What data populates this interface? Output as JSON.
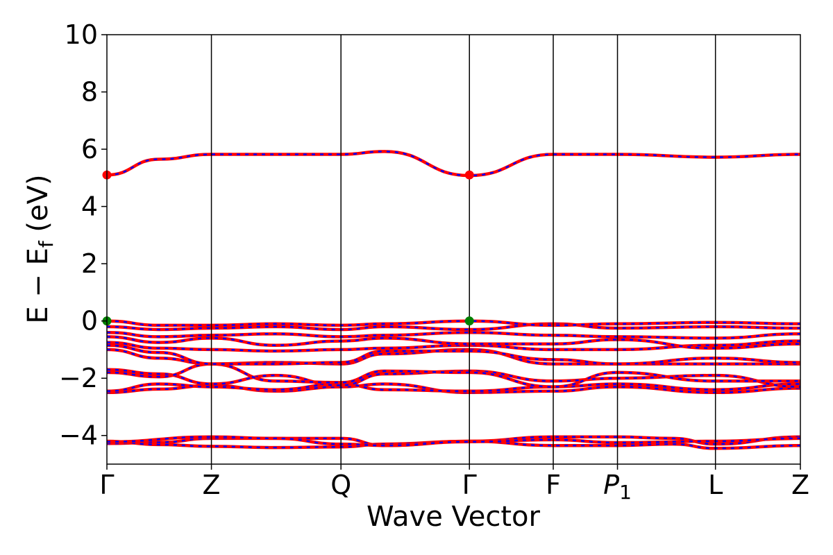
{
  "chart_data": {
    "type": "line",
    "title": "",
    "xlabel": "Wave Vector",
    "ylabel": "E − E",
    "ylabel_subscript": "f",
    "ylabel_unit": " (eV)",
    "ylim": [
      -5,
      10
    ],
    "yticks": [
      -4,
      -2,
      0,
      2,
      4,
      6,
      8,
      10
    ],
    "ytick_labels": [
      "−4",
      "−2",
      "0",
      "2",
      "4",
      "6",
      "8",
      "10"
    ],
    "xlim": [
      0,
      6.37
    ],
    "kpoints": [
      {
        "label": "Γ",
        "x": 0.0
      },
      {
        "label": "Z",
        "x": 0.96
      },
      {
        "label": "Q",
        "x": 2.15
      },
      {
        "label": "Γ",
        "x": 3.33
      },
      {
        "label": "F",
        "x": 4.1
      },
      {
        "label": "P",
        "sub": "1",
        "italic": true,
        "x": 4.69
      },
      {
        "label": "L",
        "x": 5.59
      },
      {
        "label": "Z",
        "x": 6.37
      }
    ],
    "grid": false,
    "band_colors": {
      "line": "#ff0000",
      "dash": "#0000ff"
    },
    "bands": [
      {
        "x": [
          0.0,
          0.48,
          0.96,
          2.15,
          2.55,
          3.33,
          4.1,
          4.69,
          5.2,
          5.59,
          6.37
        ],
        "y": [
          -4.28,
          -4.24,
          -4.1,
          -4.1,
          -4.35,
          -4.2,
          -4.05,
          -4.05,
          -4.1,
          -4.3,
          -4.05
        ]
      },
      {
        "x": [
          0.0,
          0.48,
          0.96,
          1.55,
          2.15,
          2.55,
          3.33,
          4.1,
          4.69,
          5.2,
          5.59,
          6.37
        ],
        "y": [
          -4.2,
          -4.32,
          -4.38,
          -4.42,
          -4.4,
          -4.3,
          -4.2,
          -4.35,
          -4.35,
          -4.3,
          -4.45,
          -4.35
        ]
      },
      {
        "x": [
          0.0,
          0.96,
          1.55,
          2.15,
          2.55,
          3.33,
          4.1,
          4.69,
          5.59,
          6.37
        ],
        "y": [
          -4.22,
          -4.05,
          -4.1,
          -4.3,
          -4.35,
          -4.22,
          -4.15,
          -4.25,
          -4.2,
          -4.1
        ]
      },
      {
        "x": [
          0.0,
          0.48,
          0.96,
          1.55,
          2.15,
          2.55,
          3.33,
          4.1,
          4.69,
          5.59,
          6.37
        ],
        "y": [
          -2.5,
          -2.38,
          -2.25,
          -2.45,
          -2.3,
          -2.2,
          -2.5,
          -2.45,
          -2.3,
          -2.5,
          -2.35
        ]
      },
      {
        "x": [
          0.0,
          0.48,
          0.96,
          1.55,
          2.15,
          2.55,
          3.33,
          4.1,
          4.69,
          5.59,
          6.37
        ],
        "y": [
          -2.45,
          -2.2,
          -2.3,
          -2.4,
          -2.2,
          -2.4,
          -2.45,
          -2.3,
          -2.2,
          -2.4,
          -2.2
        ]
      },
      {
        "x": [
          0.0,
          0.48,
          0.96,
          1.55,
          2.15,
          2.55,
          3.33,
          4.1,
          4.69,
          5.59,
          6.37
        ],
        "y": [
          -1.7,
          -1.85,
          -2.2,
          -1.9,
          -2.25,
          -1.85,
          -1.75,
          -2.1,
          -2.0,
          -1.9,
          -2.3
        ]
      },
      {
        "x": [
          0.0,
          0.48,
          0.96,
          1.55,
          2.15,
          2.55,
          3.33,
          4.1,
          4.69,
          5.59,
          6.37
        ],
        "y": [
          -1.8,
          -1.95,
          -1.5,
          -2.1,
          -2.15,
          -1.75,
          -1.8,
          -2.3,
          -1.8,
          -2.1,
          -2.1
        ]
      },
      {
        "x": [
          0.0,
          0.48,
          0.96,
          1.55,
          2.15,
          2.55,
          3.33,
          4.1,
          4.69,
          5.59,
          6.37
        ],
        "y": [
          -1.0,
          -1.3,
          -1.5,
          -1.45,
          -1.5,
          -1.15,
          -1.0,
          -1.5,
          -1.5,
          -1.5,
          -1.5
        ]
      },
      {
        "x": [
          0.0,
          0.48,
          0.96,
          1.55,
          2.15,
          2.55,
          3.33,
          4.1,
          4.69,
          5.59,
          6.37
        ],
        "y": [
          -0.85,
          -1.1,
          -1.5,
          -1.5,
          -1.45,
          -1.05,
          -1.05,
          -1.35,
          -1.5,
          -1.3,
          -1.45
        ]
      },
      {
        "x": [
          0.0,
          0.48,
          0.96,
          1.55,
          2.15,
          2.55,
          3.33,
          4.1,
          4.69,
          5.59,
          6.37
        ],
        "y": [
          -0.75,
          -0.95,
          -1.0,
          -1.05,
          -1.0,
          -0.95,
          -0.85,
          -1.0,
          -1.0,
          -0.85,
          -0.7
        ]
      },
      {
        "x": [
          0.0,
          0.48,
          0.96,
          1.55,
          2.15,
          2.55,
          3.33,
          4.1,
          4.69,
          5.59,
          6.37
        ],
        "y": [
          -0.55,
          -0.75,
          -0.6,
          -0.85,
          -0.7,
          -0.6,
          -0.8,
          -0.8,
          -0.65,
          -0.95,
          -0.8
        ]
      },
      {
        "x": [
          0.0,
          0.48,
          0.96,
          1.55,
          2.15,
          2.55,
          3.33,
          4.1,
          4.69,
          5.59,
          6.37
        ],
        "y": [
          -0.4,
          -0.55,
          -0.5,
          -0.45,
          -0.55,
          -0.5,
          -0.4,
          -0.5,
          -0.55,
          -0.6,
          -0.45
        ]
      },
      {
        "x": [
          0.0,
          0.48,
          0.96,
          1.55,
          2.15,
          2.55,
          3.33,
          4.1,
          4.69,
          5.59,
          6.37
        ],
        "y": [
          -0.2,
          -0.3,
          -0.25,
          -0.2,
          -0.3,
          -0.2,
          -0.3,
          -0.1,
          -0.25,
          -0.2,
          -0.25
        ]
      },
      {
        "x": [
          0.0,
          0.48,
          0.96,
          1.55,
          2.15,
          2.55,
          3.33,
          4.1,
          4.69,
          5.59,
          6.37
        ],
        "y": [
          0.0,
          -0.15,
          -0.15,
          -0.1,
          -0.15,
          -0.1,
          0.0,
          -0.15,
          -0.1,
          -0.05,
          -0.1
        ]
      },
      {
        "x": [
          0.0,
          0.48,
          0.96,
          2.15,
          2.55,
          3.33,
          4.1,
          4.69,
          5.59,
          6.37
        ],
        "y": [
          5.1,
          5.65,
          5.82,
          5.82,
          5.92,
          5.08,
          5.82,
          5.82,
          5.72,
          5.82
        ]
      }
    ],
    "markers": [
      {
        "x": 0.0,
        "y": 5.1,
        "color": "#ff0000"
      },
      {
        "x": 3.33,
        "y": 5.1,
        "color": "#ff0000"
      },
      {
        "x": 0.0,
        "y": 0.0,
        "color": "#008000"
      },
      {
        "x": 3.33,
        "y": 0.0,
        "color": "#008000"
      }
    ]
  }
}
